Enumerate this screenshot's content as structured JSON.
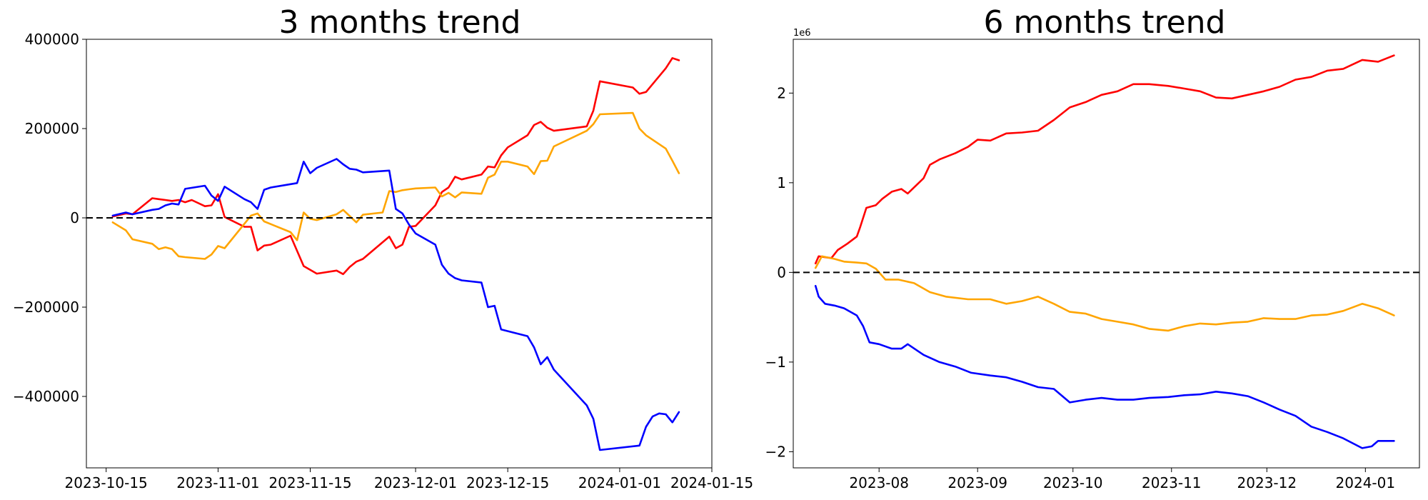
{
  "chart_data": [
    {
      "type": "line",
      "title": "3 months trend",
      "xlabel": "",
      "ylabel": "",
      "x_axis": "date",
      "xlim": [
        "2023-10-12",
        "2024-01-15"
      ],
      "ylim": [
        -560000,
        400000
      ],
      "x_ticks": [
        "2023-10-15",
        "2023-11-01",
        "2023-11-15",
        "2023-12-01",
        "2023-12-15",
        "2024-01-01",
        "2024-01-15"
      ],
      "y_ticks": [
        400000,
        200000,
        0,
        -200000,
        -400000
      ],
      "y_tick_labels": [
        "400000",
        "200000",
        "0",
        "−200000",
        "−400000"
      ],
      "zero_line": true,
      "grid": false,
      "series": [
        {
          "color": "#ff0000",
          "x": [
            "2023-10-16",
            "2023-10-18",
            "2023-10-19",
            "2023-10-22",
            "2023-10-23",
            "2023-10-24",
            "2023-10-25",
            "2023-10-26",
            "2023-10-27",
            "2023-10-28",
            "2023-10-30",
            "2023-10-31",
            "2023-11-01",
            "2023-11-02",
            "2023-11-05",
            "2023-11-06",
            "2023-11-07",
            "2023-11-08",
            "2023-11-09",
            "2023-11-12",
            "2023-11-14",
            "2023-11-16",
            "2023-11-19",
            "2023-11-20",
            "2023-11-21",
            "2023-11-22",
            "2023-11-23",
            "2023-11-27",
            "2023-11-28",
            "2023-11-29",
            "2023-11-30",
            "2023-12-01",
            "2023-12-04",
            "2023-12-05",
            "2023-12-06",
            "2023-12-07",
            "2023-12-08",
            "2023-12-11",
            "2023-12-12",
            "2023-12-13",
            "2023-12-14",
            "2023-12-15",
            "2023-12-18",
            "2023-12-19",
            "2023-12-20",
            "2023-12-21",
            "2023-12-22",
            "2023-12-27",
            "2023-12-28",
            "2023-12-29",
            "2024-01-03",
            "2024-01-04",
            "2024-01-05",
            "2024-01-08",
            "2024-01-09",
            "2024-01-10"
          ],
          "values": [
            3000,
            10000,
            8000,
            44000,
            42000,
            40000,
            38000,
            40000,
            35000,
            40000,
            26000,
            28000,
            53000,
            2000,
            -20000,
            -20000,
            -73000,
            -62000,
            -60000,
            -40000,
            -108000,
            -125000,
            -118000,
            -126000,
            -110000,
            -98000,
            -92000,
            -42000,
            -68000,
            -60000,
            -20000,
            -18000,
            28000,
            58000,
            68000,
            92000,
            86000,
            97000,
            115000,
            113000,
            140000,
            158000,
            185000,
            208000,
            215000,
            202000,
            195000,
            205000,
            240000,
            306000,
            292000,
            278000,
            282000,
            335000,
            358000,
            353000
          ]
        },
        {
          "color": "#ffa500",
          "x": [
            "2023-10-16",
            "2023-10-18",
            "2023-10-19",
            "2023-10-22",
            "2023-10-23",
            "2023-10-24",
            "2023-10-25",
            "2023-10-26",
            "2023-10-27",
            "2023-10-30",
            "2023-10-31",
            "2023-11-01",
            "2023-11-02",
            "2023-11-06",
            "2023-11-07",
            "2023-11-08",
            "2023-11-12",
            "2023-11-13",
            "2023-11-14",
            "2023-11-15",
            "2023-11-16",
            "2023-11-19",
            "2023-11-20",
            "2023-11-21",
            "2023-11-22",
            "2023-11-23",
            "2023-11-26",
            "2023-11-27",
            "2023-11-28",
            "2023-11-29",
            "2023-11-30",
            "2023-12-01",
            "2023-12-04",
            "2023-12-05",
            "2023-12-06",
            "2023-12-07",
            "2023-12-08",
            "2023-12-11",
            "2023-12-12",
            "2023-12-13",
            "2023-12-14",
            "2023-12-15",
            "2023-12-18",
            "2023-12-19",
            "2023-12-20",
            "2023-12-21",
            "2023-12-22",
            "2023-12-27",
            "2023-12-28",
            "2023-12-29",
            "2024-01-03",
            "2024-01-04",
            "2024-01-05",
            "2024-01-08",
            "2024-01-09",
            "2024-01-10"
          ],
          "values": [
            -10000,
            -28000,
            -48000,
            -58000,
            -70000,
            -66000,
            -70000,
            -86000,
            -88000,
            -92000,
            -82000,
            -63000,
            -68000,
            5000,
            10000,
            -8000,
            -32000,
            -50000,
            12000,
            -2000,
            -5000,
            8000,
            18000,
            4000,
            -10000,
            7000,
            12000,
            60000,
            58000,
            62000,
            64000,
            66000,
            68000,
            48000,
            56000,
            46000,
            57000,
            54000,
            90000,
            97000,
            126000,
            126000,
            115000,
            98000,
            127000,
            128000,
            160000,
            195000,
            210000,
            232000,
            235000,
            200000,
            185000,
            155000,
            128000,
            100000
          ]
        },
        {
          "color": "#0000ff",
          "x": [
            "2023-10-16",
            "2023-10-18",
            "2023-10-19",
            "2023-10-22",
            "2023-10-23",
            "2023-10-24",
            "2023-10-25",
            "2023-10-26",
            "2023-10-27",
            "2023-10-30",
            "2023-10-31",
            "2023-11-01",
            "2023-11-02",
            "2023-11-05",
            "2023-11-06",
            "2023-11-07",
            "2023-11-08",
            "2023-11-09",
            "2023-11-13",
            "2023-11-14",
            "2023-11-15",
            "2023-11-16",
            "2023-11-19",
            "2023-11-20",
            "2023-11-21",
            "2023-11-22",
            "2023-11-23",
            "2023-11-27",
            "2023-11-28",
            "2023-11-29",
            "2023-11-30",
            "2023-12-01",
            "2023-12-04",
            "2023-12-05",
            "2023-12-06",
            "2023-12-07",
            "2023-12-08",
            "2023-12-11",
            "2023-12-12",
            "2023-12-13",
            "2023-12-14",
            "2023-12-18",
            "2023-12-19",
            "2023-12-20",
            "2023-12-21",
            "2023-12-22",
            "2023-12-27",
            "2023-12-28",
            "2023-12-29",
            "2024-01-04",
            "2024-01-05",
            "2024-01-06",
            "2024-01-07",
            "2024-01-08",
            "2024-01-09",
            "2024-01-10"
          ],
          "values": [
            5000,
            12000,
            8000,
            18000,
            20000,
            28000,
            32000,
            30000,
            65000,
            72000,
            50000,
            38000,
            70000,
            42000,
            35000,
            20000,
            63000,
            68000,
            78000,
            126000,
            100000,
            112000,
            132000,
            120000,
            110000,
            108000,
            102000,
            106000,
            20000,
            10000,
            -15000,
            -35000,
            -60000,
            -105000,
            -125000,
            -135000,
            -140000,
            -145000,
            -200000,
            -197000,
            -250000,
            -265000,
            -290000,
            -328000,
            -312000,
            -340000,
            -420000,
            -450000,
            -520000,
            -510000,
            -468000,
            -445000,
            -438000,
            -440000,
            -458000,
            -435000
          ]
        }
      ]
    },
    {
      "type": "line",
      "title": "6 months trend",
      "xlabel": "",
      "ylabel": "",
      "x_axis": "date",
      "xlim": [
        "2023-07-05",
        "2024-01-18"
      ],
      "ylim": [
        -2.18,
        2.6
      ],
      "y_scale_offset": "1e6",
      "x_ticks": [
        "2023-08",
        "2023-09",
        "2023-10",
        "2023-11",
        "2023-12",
        "2024-01"
      ],
      "y_ticks": [
        2,
        1,
        0,
        -1,
        -2
      ],
      "y_tick_labels": [
        "2",
        "1",
        "0",
        "−1",
        "−2"
      ],
      "zero_line": true,
      "grid": false,
      "series": [
        {
          "color": "#ff0000",
          "x": [
            "2023-07-12",
            "2023-07-13",
            "2023-07-17",
            "2023-07-19",
            "2023-07-22",
            "2023-07-25",
            "2023-07-26",
            "2023-07-28",
            "2023-07-31",
            "2023-08-02",
            "2023-08-05",
            "2023-08-08",
            "2023-08-10",
            "2023-08-15",
            "2023-08-17",
            "2023-08-20",
            "2023-08-25",
            "2023-08-29",
            "2023-09-01",
            "2023-09-05",
            "2023-09-10",
            "2023-09-15",
            "2023-09-20",
            "2023-09-25",
            "2023-09-30",
            "2023-10-05",
            "2023-10-10",
            "2023-10-15",
            "2023-10-20",
            "2023-10-25",
            "2023-10-31",
            "2023-11-05",
            "2023-11-10",
            "2023-11-15",
            "2023-11-20",
            "2023-11-25",
            "2023-11-30",
            "2023-12-05",
            "2023-12-10",
            "2023-12-15",
            "2023-12-20",
            "2023-12-25",
            "2023-12-31",
            "2024-01-05",
            "2024-01-10"
          ],
          "values": [
            0.1,
            0.18,
            0.16,
            0.25,
            0.32,
            0.4,
            0.5,
            0.72,
            0.75,
            0.82,
            0.9,
            0.93,
            0.88,
            1.05,
            1.2,
            1.26,
            1.33,
            1.4,
            1.48,
            1.47,
            1.55,
            1.56,
            1.58,
            1.7,
            1.84,
            1.9,
            1.98,
            2.02,
            2.1,
            2.1,
            2.08,
            2.05,
            2.02,
            1.95,
            1.94,
            1.98,
            2.02,
            2.07,
            2.15,
            2.18,
            2.25,
            2.27,
            2.37,
            2.35,
            2.42
          ]
        },
        {
          "color": "#ffa500",
          "x": [
            "2023-07-12",
            "2023-07-14",
            "2023-07-18",
            "2023-07-21",
            "2023-07-25",
            "2023-07-28",
            "2023-07-31",
            "2023-08-03",
            "2023-08-07",
            "2023-08-12",
            "2023-08-17",
            "2023-08-22",
            "2023-08-29",
            "2023-09-05",
            "2023-09-10",
            "2023-09-15",
            "2023-09-20",
            "2023-09-25",
            "2023-09-30",
            "2023-10-05",
            "2023-10-10",
            "2023-10-15",
            "2023-10-20",
            "2023-10-25",
            "2023-10-31",
            "2023-11-05",
            "2023-11-10",
            "2023-11-15",
            "2023-11-20",
            "2023-11-25",
            "2023-11-30",
            "2023-12-05",
            "2023-12-10",
            "2023-12-15",
            "2023-12-20",
            "2023-12-25",
            "2023-12-31",
            "2024-01-05",
            "2024-01-10"
          ],
          "values": [
            0.05,
            0.18,
            0.15,
            0.12,
            0.11,
            0.1,
            0.04,
            -0.08,
            -0.08,
            -0.12,
            -0.22,
            -0.27,
            -0.3,
            -0.3,
            -0.35,
            -0.32,
            -0.27,
            -0.35,
            -0.44,
            -0.46,
            -0.52,
            -0.55,
            -0.58,
            -0.63,
            -0.65,
            -0.6,
            -0.57,
            -0.58,
            -0.56,
            -0.55,
            -0.51,
            -0.52,
            -0.52,
            -0.48,
            -0.47,
            -0.43,
            -0.35,
            -0.4,
            -0.48
          ]
        },
        {
          "color": "#0000ff",
          "x": [
            "2023-07-12",
            "2023-07-13",
            "2023-07-15",
            "2023-07-18",
            "2023-07-21",
            "2023-07-25",
            "2023-07-27",
            "2023-07-29",
            "2023-08-01",
            "2023-08-05",
            "2023-08-08",
            "2023-08-10",
            "2023-08-15",
            "2023-08-20",
            "2023-08-25",
            "2023-08-30",
            "2023-09-05",
            "2023-09-10",
            "2023-09-15",
            "2023-09-20",
            "2023-09-25",
            "2023-09-30",
            "2023-10-05",
            "2023-10-10",
            "2023-10-15",
            "2023-10-20",
            "2023-10-25",
            "2023-10-31",
            "2023-11-05",
            "2023-11-10",
            "2023-11-15",
            "2023-11-20",
            "2023-11-25",
            "2023-11-30",
            "2023-12-05",
            "2023-12-10",
            "2023-12-15",
            "2023-12-20",
            "2023-12-25",
            "2023-12-31",
            "2024-01-03",
            "2024-01-05",
            "2024-01-10"
          ],
          "values": [
            -0.15,
            -0.27,
            -0.35,
            -0.37,
            -0.4,
            -0.48,
            -0.6,
            -0.78,
            -0.8,
            -0.85,
            -0.85,
            -0.8,
            -0.92,
            -1.0,
            -1.05,
            -1.12,
            -1.15,
            -1.17,
            -1.22,
            -1.28,
            -1.3,
            -1.45,
            -1.42,
            -1.4,
            -1.42,
            -1.42,
            -1.4,
            -1.39,
            -1.37,
            -1.36,
            -1.33,
            -1.35,
            -1.38,
            -1.45,
            -1.53,
            -1.6,
            -1.72,
            -1.78,
            -1.85,
            -1.96,
            -1.94,
            -1.88,
            -1.88
          ]
        }
      ]
    }
  ]
}
